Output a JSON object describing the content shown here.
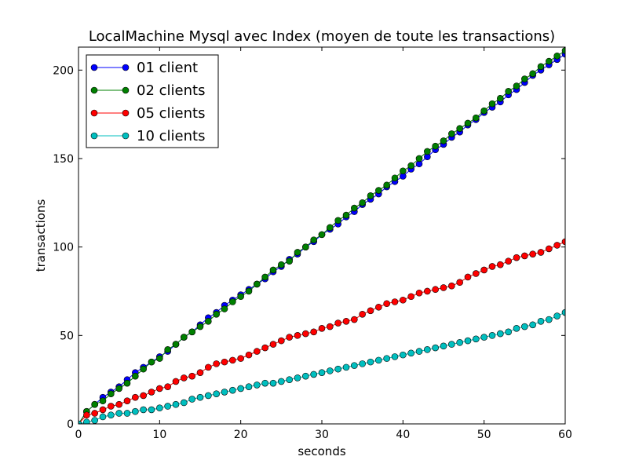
{
  "chart_data": {
    "type": "line",
    "title": "LocalMachine Mysql avec Index (moyen de toute les transactions)",
    "xlabel": "seconds",
    "ylabel": "transactions",
    "xlim": [
      0,
      60
    ],
    "ylim": [
      0,
      213
    ],
    "xticks": [
      0,
      10,
      20,
      30,
      40,
      50,
      60
    ],
    "yticks": [
      0,
      50,
      100,
      150,
      200
    ],
    "legend_position": "top-left",
    "grid": false,
    "x": [
      0,
      1,
      2,
      3,
      4,
      5,
      6,
      7,
      8,
      9,
      10,
      11,
      12,
      13,
      14,
      15,
      16,
      17,
      18,
      19,
      20,
      21,
      22,
      23,
      24,
      25,
      26,
      27,
      28,
      29,
      30,
      31,
      32,
      33,
      34,
      35,
      36,
      37,
      38,
      39,
      40,
      41,
      42,
      43,
      44,
      45,
      46,
      47,
      48,
      49,
      50,
      51,
      52,
      53,
      54,
      55,
      56,
      57,
      58,
      59,
      60
    ],
    "series": [
      {
        "name": "01 client",
        "color": "#0000ff",
        "values": [
          0,
          7,
          11,
          15,
          18,
          21,
          25,
          29,
          32,
          35,
          38,
          41,
          45,
          49,
          52,
          56,
          60,
          63,
          67,
          70,
          73,
          76,
          79,
          82,
          86,
          89,
          93,
          96,
          100,
          103,
          107,
          110,
          113,
          117,
          120,
          124,
          127,
          130,
          134,
          137,
          140,
          144,
          147,
          151,
          155,
          158,
          162,
          165,
          169,
          172,
          176,
          179,
          182,
          186,
          189,
          193,
          197,
          200,
          203,
          206,
          209
        ]
      },
      {
        "name": "02 clients",
        "color": "#008000",
        "values": [
          0,
          7,
          11,
          13,
          17,
          20,
          23,
          27,
          31,
          35,
          37,
          42,
          45,
          49,
          52,
          55,
          58,
          62,
          65,
          69,
          72,
          75,
          79,
          83,
          87,
          90,
          92,
          97,
          100,
          104,
          107,
          111,
          115,
          118,
          122,
          125,
          129,
          132,
          135,
          139,
          143,
          146,
          150,
          154,
          157,
          160,
          164,
          167,
          170,
          173,
          177,
          181,
          184,
          188,
          191,
          195,
          198,
          202,
          205,
          208,
          211
        ]
      },
      {
        "name": "05 clients",
        "color": "#ff0000",
        "values": [
          0,
          5,
          6,
          8,
          10,
          11,
          13,
          15,
          16,
          18,
          20,
          21,
          24,
          26,
          27,
          29,
          32,
          34,
          35,
          36,
          37,
          39,
          41,
          43,
          45,
          47,
          49,
          50,
          51,
          52,
          54,
          55,
          57,
          58,
          59,
          62,
          64,
          66,
          68,
          69,
          70,
          72,
          74,
          75,
          76,
          77,
          78,
          80,
          83,
          85,
          87,
          89,
          90,
          92,
          94,
          95,
          96,
          97,
          99,
          101,
          103
        ]
      },
      {
        "name": "10 clients",
        "color": "#00bfbf",
        "values": [
          0,
          1,
          2,
          4,
          5,
          6,
          6,
          7,
          8,
          8,
          9,
          10,
          11,
          12,
          14,
          15,
          16,
          17,
          18,
          19,
          20,
          21,
          22,
          23,
          23,
          24,
          25,
          26,
          27,
          28,
          29,
          30,
          31,
          32,
          33,
          34,
          35,
          36,
          37,
          38,
          39,
          40,
          41,
          42,
          43,
          44,
          45,
          46,
          47,
          48,
          49,
          50,
          51,
          52,
          54,
          55,
          56,
          58,
          59,
          61,
          63
        ]
      }
    ]
  }
}
